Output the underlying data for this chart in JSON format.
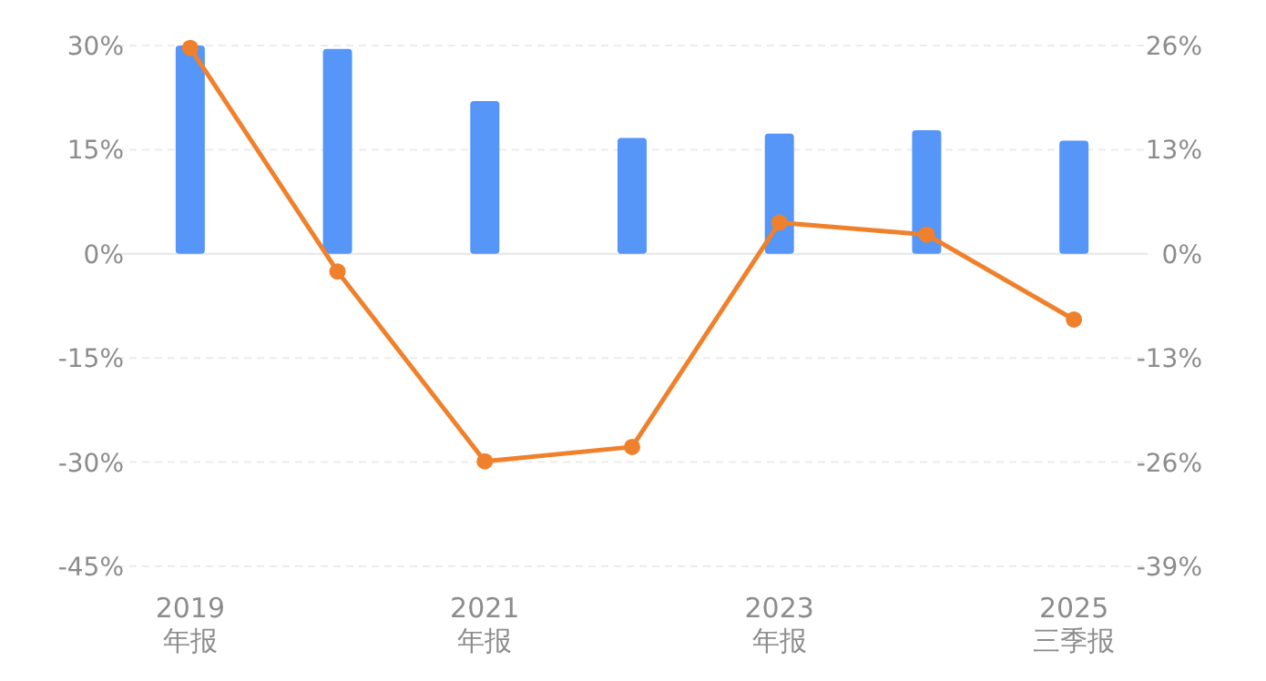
{
  "chart_data": {
    "type": "bar",
    "categories": [
      "2019\n年报",
      null,
      "2021\n年报",
      null,
      "2023\n年报",
      null,
      "2025\n三季报"
    ],
    "series": [
      {
        "color": "#5596f8",
        "values": [
          30,
          29.5,
          22,
          16.7,
          17.3,
          17.8,
          16.3
        ]
      },
      {
        "type": "line",
        "axis": "y2",
        "color": "#f0812c",
        "values": [
          25.7,
          -2.2,
          -25.9,
          -24.1,
          3.9,
          2.4,
          -8.2
        ]
      }
    ],
    "ylim": [
      -45,
      30
    ],
    "yticks": [
      {
        "value": -45,
        "label": "-45%"
      },
      {
        "value": -30,
        "label": "-30%"
      },
      {
        "value": -15,
        "label": "-15%"
      },
      {
        "value": 0,
        "label": "0%"
      },
      {
        "value": 15,
        "label": "15%"
      },
      {
        "value": 30,
        "label": "30%"
      }
    ],
    "y2lim": [
      -39,
      26
    ],
    "y2ticks": [
      {
        "value": -39,
        "label": "-39%"
      },
      {
        "value": -26,
        "label": "-26%"
      },
      {
        "value": -13,
        "label": "-13%"
      },
      {
        "value": 0,
        "label": "0%"
      },
      {
        "value": 13,
        "label": "13%"
      },
      {
        "value": 26,
        "label": "26%"
      }
    ],
    "grid": "y",
    "marker": "circle",
    "line_style": "solid"
  }
}
